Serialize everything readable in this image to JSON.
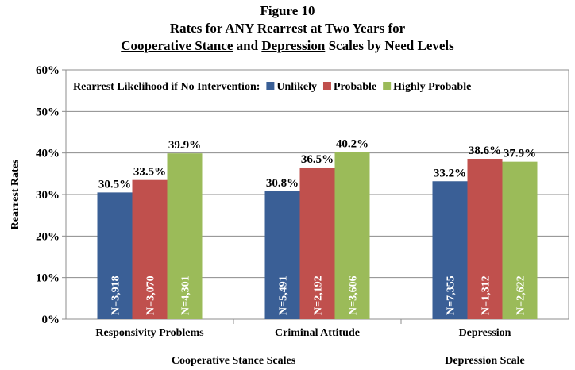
{
  "figure": {
    "label": "Figure 10",
    "line2": "Rates for ANY Rearrest at Two Years for",
    "line3_part1": "Cooperative Stance",
    "line3_part2": " and ",
    "line3_part3": "Depression",
    "line3_part4": " Scales by Need Levels"
  },
  "chart_data": {
    "type": "bar",
    "ylabel": "Rearrest Rates",
    "ylim": [
      0,
      60
    ],
    "yticks": [
      "0%",
      "10%",
      "20%",
      "30%",
      "40%",
      "50%",
      "60%"
    ],
    "grid": true,
    "legend_title": "Rearrest Likelihood if No Intervention:",
    "legend_position": "top-inside",
    "categories": [
      "Responsivity Problems",
      "Criminal Attitude",
      "Depression"
    ],
    "series": [
      {
        "name": "Unlikely",
        "color": "#3a5f96",
        "values": [
          30.5,
          30.8,
          33.2
        ],
        "value_labels": [
          "30.5%",
          "30.8%",
          "33.2%"
        ],
        "n_labels": [
          "N=3,918",
          "N=5,491",
          "N=7,355"
        ]
      },
      {
        "name": "Probable",
        "color": "#c0504d",
        "values": [
          33.5,
          36.5,
          38.6
        ],
        "value_labels": [
          "33.5%",
          "36.5%",
          "38.6%"
        ],
        "n_labels": [
          "N=3,070",
          "N=2,192",
          "N=1,312"
        ]
      },
      {
        "name": "Highly Probable",
        "color": "#9bbb59",
        "values": [
          39.9,
          40.2,
          37.9
        ],
        "value_labels": [
          "39.9%",
          "40.2%",
          "37.9%"
        ],
        "n_labels": [
          "N=4,301",
          "N=3,606",
          "N=2,622"
        ]
      }
    ],
    "group_labels": [
      "Cooperative Stance Scales",
      "Depression Scale"
    ]
  }
}
